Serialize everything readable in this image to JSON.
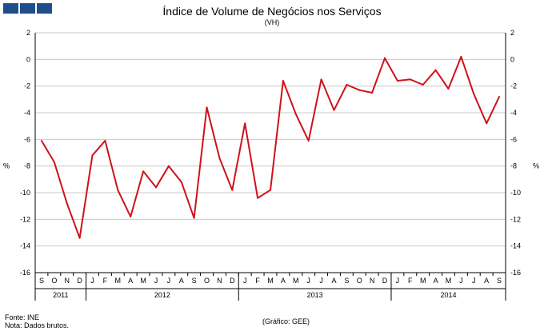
{
  "title": "Índice de Volume de Negócios nos Serviços",
  "subtitle": "(VH)",
  "footer": {
    "source": "Fonte: INE",
    "note": "Nota: Dados brutos.",
    "credit": "(Gráfico: GEE)"
  },
  "colors": {
    "line": "#d0111b",
    "logo": "#1f4e8c",
    "grid": "#c8c8c8"
  },
  "chart_data": {
    "type": "line",
    "title": "Índice de Volume de Negócios nos Serviços",
    "subtitle": "(VH)",
    "ylabel_left": "%",
    "ylabel_right": "%",
    "ylim": [
      -16,
      2
    ],
    "yticks": [
      2,
      0,
      -2,
      -4,
      -6,
      -8,
      -10,
      -12,
      -14,
      -16
    ],
    "grid": true,
    "months": [
      "S",
      "O",
      "N",
      "D",
      "J",
      "F",
      "M",
      "A",
      "M",
      "J",
      "J",
      "A",
      "S",
      "O",
      "N",
      "D",
      "J",
      "F",
      "M",
      "A",
      "M",
      "J",
      "J",
      "A",
      "S",
      "O",
      "N",
      "D",
      "J",
      "F",
      "M",
      "A",
      "M",
      "J",
      "J",
      "A",
      "S"
    ],
    "years": [
      {
        "label": "2011",
        "start": 0,
        "count": 4
      },
      {
        "label": "2012",
        "start": 4,
        "count": 12
      },
      {
        "label": "2013",
        "start": 16,
        "count": 12
      },
      {
        "label": "2014",
        "start": 28,
        "count": 9
      }
    ],
    "series": [
      {
        "name": "VH",
        "values": [
          -6.1,
          -7.7,
          -10.8,
          -13.4,
          -7.2,
          -6.1,
          -9.8,
          -11.8,
          -8.4,
          -9.6,
          -8.0,
          -9.2,
          -11.9,
          -3.6,
          -7.4,
          -9.8,
          -4.8,
          -10.4,
          -9.8,
          -1.6,
          -4.1,
          -6.1,
          -1.5,
          -3.8,
          -1.9,
          -2.3,
          -2.5,
          0.1,
          -1.6,
          -1.5,
          -1.9,
          -0.8,
          -2.2,
          0.2,
          -2.6,
          -4.8,
          -2.8
        ]
      }
    ]
  }
}
